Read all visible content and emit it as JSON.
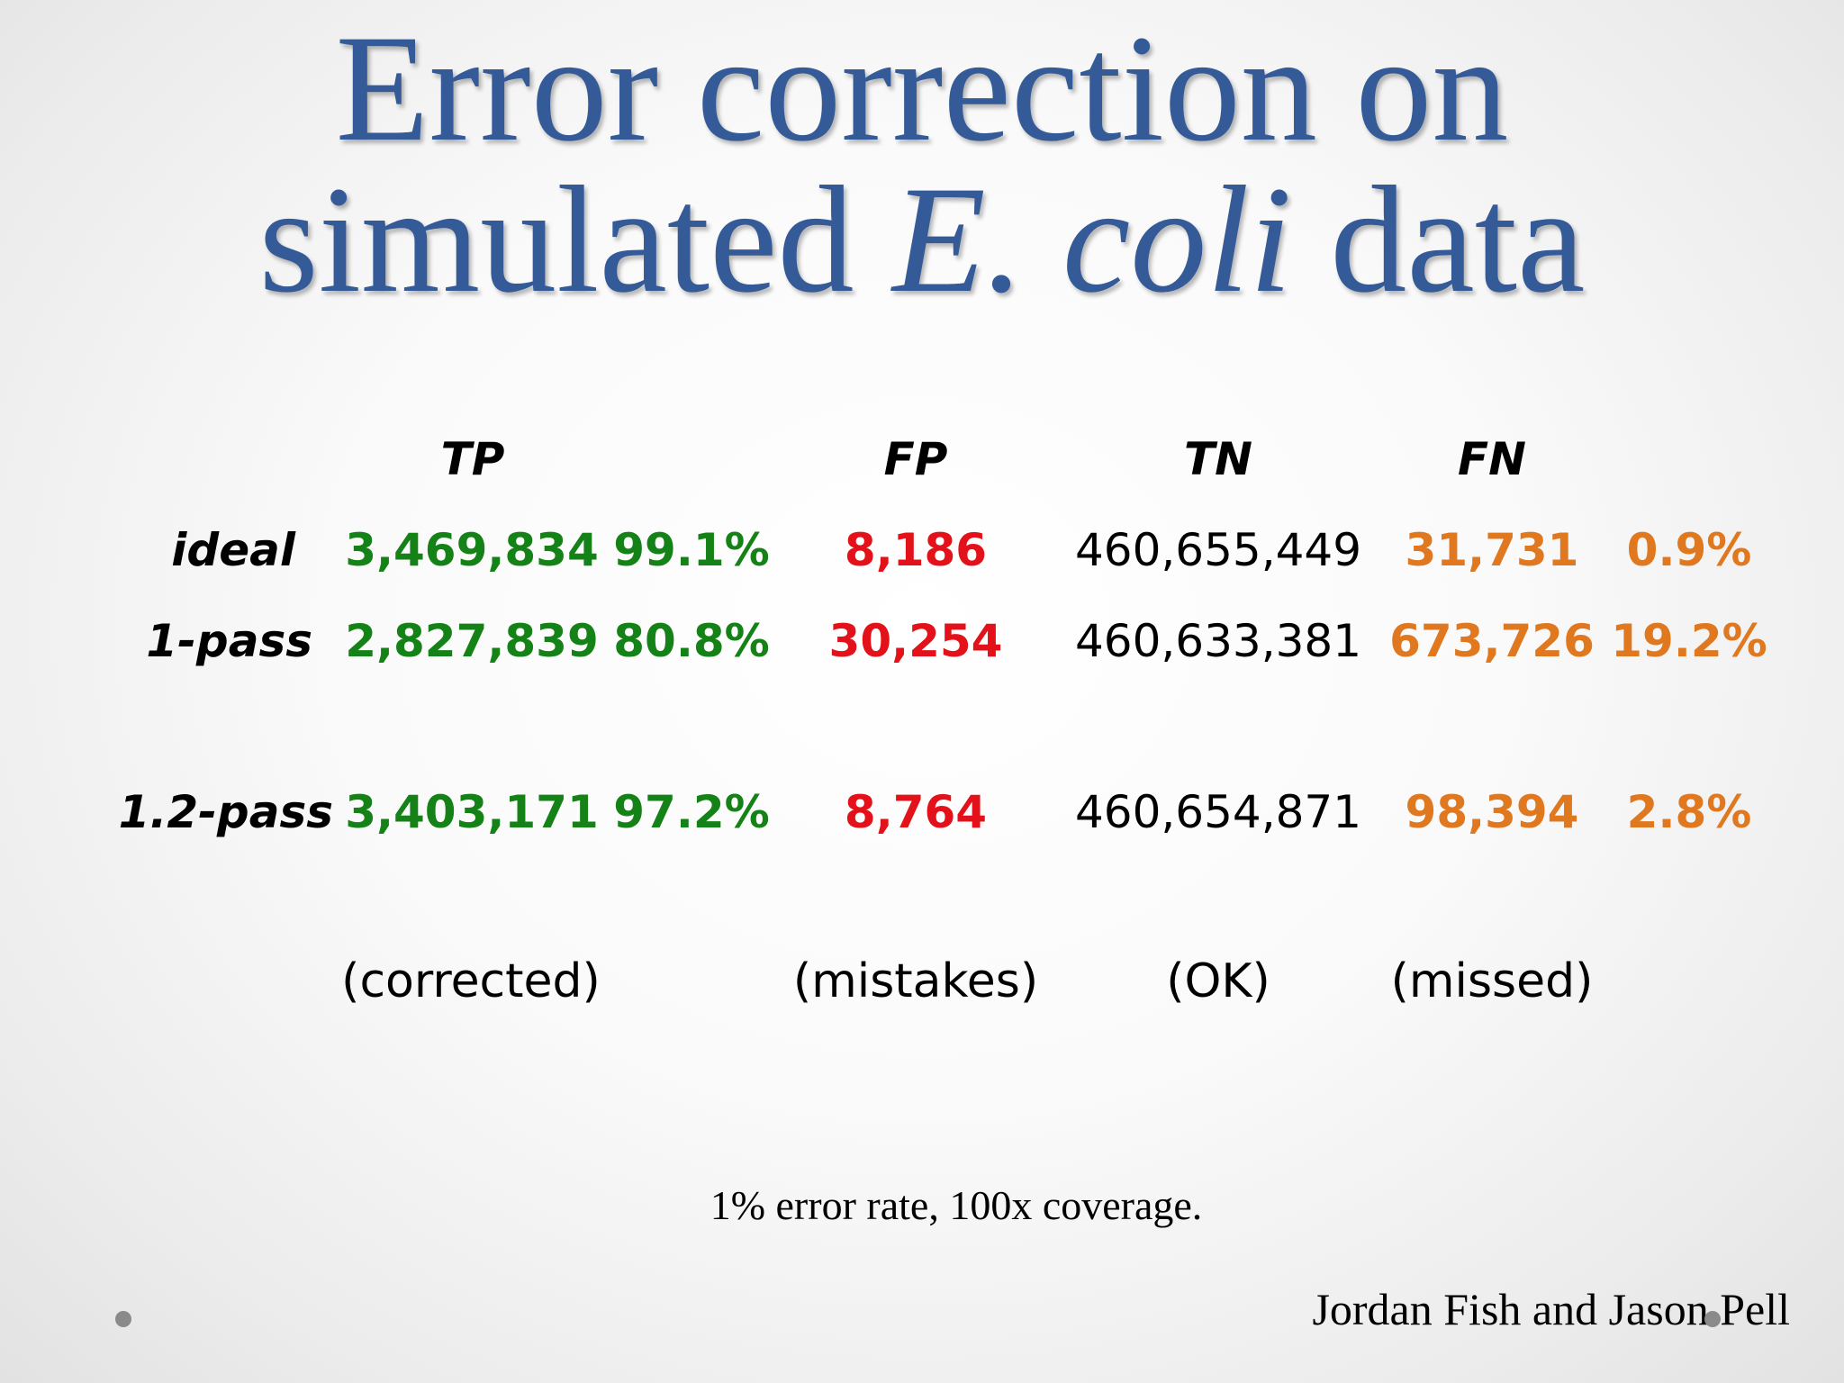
{
  "title": {
    "line1": "Error correction on",
    "line2_prefix": "simulated ",
    "line2_italic": "E. coli",
    "line2_suffix": " data"
  },
  "table": {
    "headers": {
      "tp": "TP",
      "fp": "FP",
      "tn": "TN",
      "fn": "FN"
    },
    "rows": [
      {
        "label": "ideal",
        "tp": "3,469,834",
        "tp_pct": "99.1%",
        "fp": "8,186",
        "tn": "460,655,449",
        "fn": "31,731",
        "fn_pct": "0.9%"
      },
      {
        "label": "1-pass",
        "tp": "2,827,839",
        "tp_pct": "80.8%",
        "fp": "30,254",
        "tn": "460,633,381",
        "fn": "673,726",
        "fn_pct": "19.2%"
      },
      {
        "label": "1.2-pass",
        "tp": "3,403,171",
        "tp_pct": "97.2%",
        "fp": "8,764",
        "tn": "460,654,871",
        "fn": "98,394",
        "fn_pct": "2.8%"
      }
    ],
    "descriptions": {
      "tp": "(corrected)",
      "fp": "(mistakes)",
      "tn": "(OK)",
      "fn": "(missed)"
    }
  },
  "note": "1% error rate, 100x coverage.",
  "credit": "Jordan Fish and Jason Pell",
  "colors": {
    "title": "#345a98",
    "tp": "#148216",
    "fp": "#e3121a",
    "fn": "#e07820"
  }
}
